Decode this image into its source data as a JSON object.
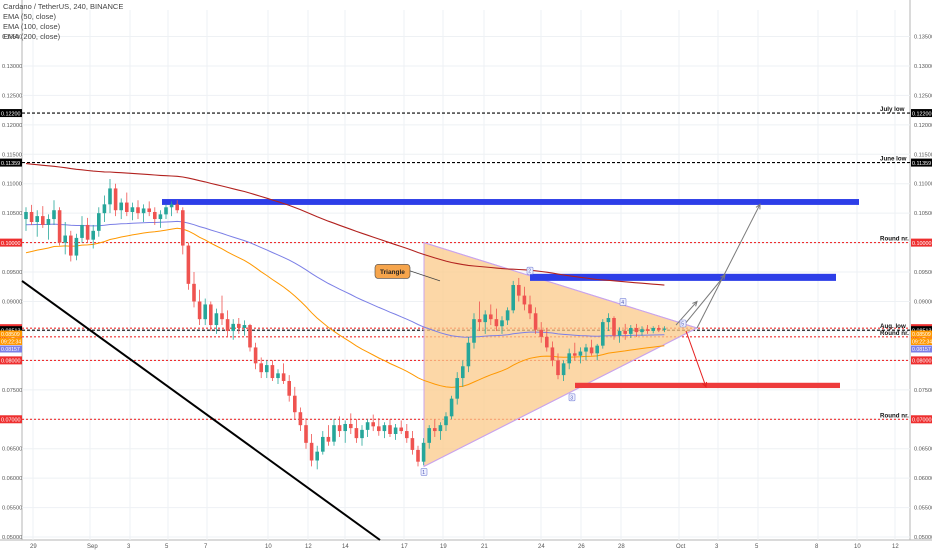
{
  "header": {
    "title": "Cardano / TetherUS, 240, BINANCE",
    "indicators": [
      "EMA (50, close)",
      "EMA (100, close)",
      "EMA (200, close)"
    ]
  },
  "colors": {
    "background": "#ffffff",
    "grid": "#eef1f4",
    "bull": "#26a69a",
    "bear": "#ef5350",
    "ema50": "#ff9800",
    "ema100": "#7b7fe6",
    "ema200": "#b2221f",
    "triangle_fill": "#fbc98a",
    "triangle_edge": "#c9a4ec",
    "resistance_box": "#2d3ee8",
    "target_box": "#ee3b3b",
    "round_line": "#ee2f2f",
    "downtrend": "#000000",
    "arrow_up": "#7a7a7a",
    "arrow_down": "#e62222"
  },
  "chart_data": {
    "type": "candlestick",
    "symbol": "Cardano / TetherUS",
    "interval": "240",
    "exchange": "BINANCE",
    "y_axis": {
      "ticks": [
        "0.13500",
        "0.13000",
        "0.12500",
        "0.12000",
        "0.11500",
        "0.11000",
        "0.10500",
        "0.10000",
        "0.09500",
        "0.09000",
        "0.08500",
        "0.08000",
        "0.07500",
        "0.07000",
        "0.06500",
        "0.06000",
        "0.05500",
        "0.05000"
      ],
      "ylim": [
        0.0495,
        0.1395
      ]
    },
    "x_axis": {
      "ticks": [
        "29",
        "Sep",
        "3",
        "5",
        "7",
        "10",
        "12",
        "14",
        "17",
        "19",
        "21",
        "24",
        "26",
        "28",
        "Oct",
        "3",
        "5",
        "8",
        "10",
        "12"
      ]
    },
    "candles": [
      [
        0.104,
        0.106,
        0.102,
        0.1052
      ],
      [
        0.1052,
        0.1064,
        0.103,
        0.1035
      ],
      [
        0.1035,
        0.1055,
        0.101,
        0.1045
      ],
      [
        0.1045,
        0.1062,
        0.1025,
        0.103
      ],
      [
        0.103,
        0.1048,
        0.1005,
        0.104
      ],
      [
        0.104,
        0.1072,
        0.103,
        0.1055
      ],
      [
        0.1055,
        0.106,
        0.0995,
        0.1
      ],
      [
        0.1,
        0.1035,
        0.098,
        0.1012
      ],
      [
        0.1012,
        0.102,
        0.0968,
        0.0978
      ],
      [
        0.0978,
        0.1015,
        0.097,
        0.1008
      ],
      [
        0.1008,
        0.1045,
        0.1,
        0.103
      ],
      [
        0.103,
        0.1042,
        0.1,
        0.1005
      ],
      [
        0.1005,
        0.103,
        0.099,
        0.102
      ],
      [
        0.102,
        0.106,
        0.101,
        0.105
      ],
      [
        0.105,
        0.108,
        0.1035,
        0.1065
      ],
      [
        0.1065,
        0.1108,
        0.105,
        0.1092
      ],
      [
        0.1092,
        0.11,
        0.1045,
        0.1055
      ],
      [
        0.1055,
        0.1075,
        0.104,
        0.1068
      ],
      [
        0.1068,
        0.1085,
        0.1045,
        0.1052
      ],
      [
        0.1052,
        0.1068,
        0.1038,
        0.106
      ],
      [
        0.106,
        0.1072,
        0.104,
        0.105
      ],
      [
        0.105,
        0.1065,
        0.1035,
        0.1058
      ],
      [
        0.1058,
        0.107,
        0.1045,
        0.1052
      ],
      [
        0.1052,
        0.106,
        0.103,
        0.104
      ],
      [
        0.104,
        0.1055,
        0.1025,
        0.1048
      ],
      [
        0.1048,
        0.1065,
        0.104,
        0.106
      ],
      [
        0.106,
        0.107,
        0.1045,
        0.1065
      ],
      [
        0.1065,
        0.1072,
        0.105,
        0.1055
      ],
      [
        0.1055,
        0.106,
        0.098,
        0.0995
      ],
      [
        0.0995,
        0.1,
        0.092,
        0.093
      ],
      [
        0.093,
        0.095,
        0.089,
        0.09
      ],
      [
        0.09,
        0.092,
        0.086,
        0.087
      ],
      [
        0.087,
        0.0905,
        0.086,
        0.0895
      ],
      [
        0.0895,
        0.09,
        0.085,
        0.086
      ],
      [
        0.086,
        0.0888,
        0.0845,
        0.088
      ],
      [
        0.088,
        0.091,
        0.086,
        0.087
      ],
      [
        0.087,
        0.0885,
        0.084,
        0.085
      ],
      [
        0.085,
        0.087,
        0.0835,
        0.0862
      ],
      [
        0.0862,
        0.0872,
        0.0845,
        0.0855
      ],
      [
        0.0855,
        0.0868,
        0.0842,
        0.086
      ],
      [
        0.086,
        0.0862,
        0.0815,
        0.0822
      ],
      [
        0.0822,
        0.083,
        0.0785,
        0.0795
      ],
      [
        0.0795,
        0.0805,
        0.077,
        0.078
      ],
      [
        0.078,
        0.08,
        0.077,
        0.0792
      ],
      [
        0.0792,
        0.08,
        0.0765,
        0.077
      ],
      [
        0.077,
        0.0785,
        0.076,
        0.0778
      ],
      [
        0.0778,
        0.0795,
        0.076,
        0.0765
      ],
      [
        0.0765,
        0.0775,
        0.073,
        0.074
      ],
      [
        0.074,
        0.0755,
        0.07,
        0.0712
      ],
      [
        0.0712,
        0.072,
        0.068,
        0.069
      ],
      [
        0.069,
        0.0702,
        0.065,
        0.066
      ],
      [
        0.066,
        0.0675,
        0.062,
        0.063
      ],
      [
        0.063,
        0.0655,
        0.0615,
        0.0645
      ],
      [
        0.0645,
        0.068,
        0.064,
        0.067
      ],
      [
        0.067,
        0.069,
        0.0655,
        0.0662
      ],
      [
        0.0662,
        0.07,
        0.0655,
        0.069
      ],
      [
        0.069,
        0.0705,
        0.067,
        0.068
      ],
      [
        0.068,
        0.0698,
        0.066,
        0.0692
      ],
      [
        0.0692,
        0.071,
        0.0675,
        0.0685
      ],
      [
        0.0685,
        0.07,
        0.066,
        0.0668
      ],
      [
        0.0668,
        0.069,
        0.0655,
        0.0682
      ],
      [
        0.0682,
        0.07,
        0.067,
        0.0695
      ],
      [
        0.0695,
        0.0708,
        0.068,
        0.0688
      ],
      [
        0.0688,
        0.0702,
        0.0672,
        0.068
      ],
      [
        0.068,
        0.0695,
        0.0668,
        0.069
      ],
      [
        0.069,
        0.07,
        0.067,
        0.0675
      ],
      [
        0.0675,
        0.0692,
        0.0665,
        0.0686
      ],
      [
        0.0686,
        0.0698,
        0.0675,
        0.068
      ],
      [
        0.068,
        0.0692,
        0.066,
        0.0668
      ],
      [
        0.0668,
        0.068,
        0.064,
        0.0648
      ],
      [
        0.0648,
        0.0655,
        0.062,
        0.0628
      ],
      [
        0.0628,
        0.0668,
        0.0622,
        0.066
      ],
      [
        0.066,
        0.069,
        0.065,
        0.0685
      ],
      [
        0.0685,
        0.07,
        0.067,
        0.068
      ],
      [
        0.068,
        0.0695,
        0.0665,
        0.069
      ],
      [
        0.069,
        0.0712,
        0.068,
        0.0705
      ],
      [
        0.0705,
        0.074,
        0.07,
        0.0735
      ],
      [
        0.0735,
        0.078,
        0.0725,
        0.077
      ],
      [
        0.077,
        0.08,
        0.0755,
        0.079
      ],
      [
        0.079,
        0.084,
        0.078,
        0.083
      ],
      [
        0.083,
        0.088,
        0.082,
        0.087
      ],
      [
        0.087,
        0.09,
        0.085,
        0.0865
      ],
      [
        0.0865,
        0.0885,
        0.0845,
        0.0878
      ],
      [
        0.0878,
        0.0895,
        0.086,
        0.087
      ],
      [
        0.087,
        0.0888,
        0.085,
        0.0858
      ],
      [
        0.0858,
        0.0875,
        0.0845,
        0.0868
      ],
      [
        0.0868,
        0.089,
        0.086,
        0.0885
      ],
      [
        0.0885,
        0.0935,
        0.088,
        0.0928
      ],
      [
        0.0928,
        0.094,
        0.09,
        0.091
      ],
      [
        0.091,
        0.0925,
        0.0885,
        0.0895
      ],
      [
        0.0895,
        0.091,
        0.087,
        0.088
      ],
      [
        0.088,
        0.089,
        0.0845,
        0.0852
      ],
      [
        0.0852,
        0.0865,
        0.083,
        0.084
      ],
      [
        0.084,
        0.0855,
        0.0815,
        0.0822
      ],
      [
        0.0822,
        0.0832,
        0.079,
        0.08
      ],
      [
        0.08,
        0.0812,
        0.0768,
        0.0775
      ],
      [
        0.0775,
        0.08,
        0.0765,
        0.0795
      ],
      [
        0.0795,
        0.082,
        0.0785,
        0.0812
      ],
      [
        0.0812,
        0.083,
        0.08,
        0.0808
      ],
      [
        0.0808,
        0.0822,
        0.0795,
        0.0815
      ],
      [
        0.0815,
        0.0828,
        0.08,
        0.0822
      ],
      [
        0.0822,
        0.0835,
        0.0808,
        0.0812
      ],
      [
        0.0812,
        0.0828,
        0.08,
        0.0825
      ],
      [
        0.0825,
        0.087,
        0.082,
        0.0865
      ],
      [
        0.0865,
        0.088,
        0.085,
        0.0872
      ],
      [
        0.0872,
        0.0875,
        0.0835,
        0.0842
      ],
      [
        0.0842,
        0.0856,
        0.083,
        0.085
      ],
      [
        0.085,
        0.0862,
        0.0835,
        0.0845
      ],
      [
        0.0845,
        0.086,
        0.0838,
        0.0855
      ],
      [
        0.0855,
        0.0862,
        0.084,
        0.0848
      ],
      [
        0.0848,
        0.0858,
        0.0842,
        0.0853
      ],
      [
        0.0853,
        0.086,
        0.0845,
        0.085
      ],
      [
        0.085,
        0.0858,
        0.0846,
        0.0855
      ],
      [
        0.0855,
        0.086,
        0.0848,
        0.0852
      ],
      [
        0.0852,
        0.0858,
        0.0848,
        0.0854
      ]
    ],
    "price_labels": [
      {
        "value": "0.12200",
        "color": "#000000",
        "label": "July low"
      },
      {
        "value": "0.11359",
        "color": "#000000",
        "label": "June low"
      },
      {
        "value": "0.10000",
        "color": "#ee2f2f",
        "label": "Round nr."
      },
      {
        "value": "0.08547",
        "color": "#ee2f2f",
        "label": ""
      },
      {
        "value": "0.08513",
        "color": "#000000",
        "label": "Aug. low"
      },
      {
        "value": "0.08400",
        "color": "#ee2f2f",
        "label": "Round nr."
      },
      {
        "value": "0.08000",
        "color": "#ee2f2f",
        "label": ""
      },
      {
        "value": "0.07000",
        "color": "#ee2f2f",
        "label": "Round nr."
      }
    ],
    "ema_tags": [
      {
        "value": "0.08509",
        "color": "#ff9800"
      },
      {
        "value": "09:22:34",
        "color": "#ff9800"
      },
      {
        "value": "0.08157",
        "color": "#7b7fe6"
      }
    ],
    "annotations": {
      "callout": "Triangle",
      "points": [
        "1",
        "2",
        "3",
        "4",
        "5"
      ],
      "resistance_box": [
        0.1064,
        0.1074
      ],
      "mid_box": [
        0.0935,
        0.0947
      ],
      "target_box": [
        0.0753,
        0.0762
      ]
    }
  }
}
